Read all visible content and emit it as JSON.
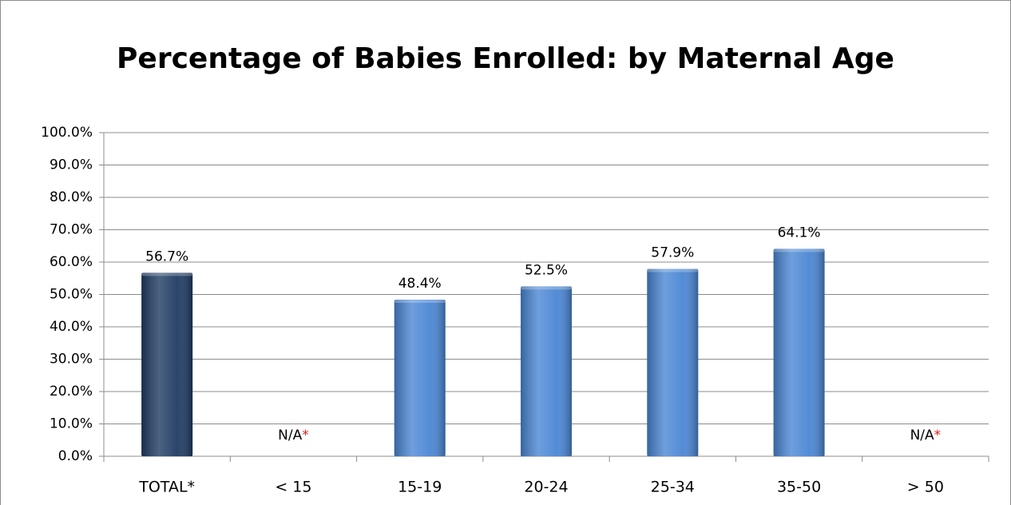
{
  "chart_data": {
    "type": "bar",
    "title": "Percentage of Babies Enrolled: by Maternal Age",
    "categories": [
      "TOTAL*",
      "< 15",
      "15-19",
      "20-24",
      "25-34",
      "35-50",
      "> 50"
    ],
    "values": [
      56.7,
      null,
      48.4,
      52.5,
      57.9,
      64.1,
      null
    ],
    "value_labels": [
      "56.7%",
      "N/A",
      "48.4%",
      "52.5%",
      "57.9%",
      "64.1%",
      "N/A"
    ],
    "value_label_suffixes": [
      null,
      "*",
      null,
      null,
      null,
      null,
      "*"
    ],
    "colors": [
      "#1f3b63",
      "#4a86d4",
      "#4a86d4",
      "#4a86d4",
      "#4a86d4",
      "#4a86d4",
      "#4a86d4"
    ],
    "ylim": [
      0,
      100
    ],
    "yticks": [
      {
        "value": 0,
        "label": "0.0%"
      },
      {
        "value": 10,
        "label": "10.0%"
      },
      {
        "value": 20,
        "label": "20.0%"
      },
      {
        "value": 30,
        "label": "30.0%"
      },
      {
        "value": 40,
        "label": "40.0%"
      },
      {
        "value": 50,
        "label": "50.0%"
      },
      {
        "value": 60,
        "label": "60.0%"
      },
      {
        "value": 70,
        "label": "70.0%"
      },
      {
        "value": 80,
        "label": "80.0%"
      },
      {
        "value": 90,
        "label": "90.0%"
      },
      {
        "value": 100,
        "label": "100.0%"
      }
    ],
    "grid": true
  }
}
